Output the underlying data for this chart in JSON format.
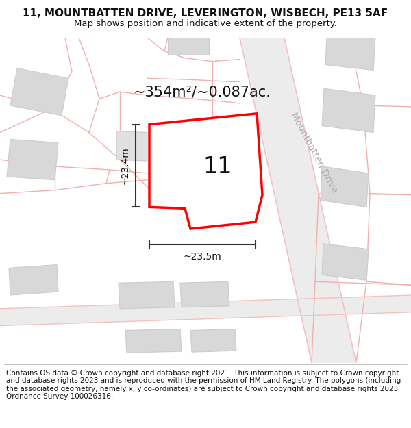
{
  "title_line1": "11, MOUNTBATTEN DRIVE, LEVERINGTON, WISBECH, PE13 5AF",
  "title_line2": "Map shows position and indicative extent of the property.",
  "footer_text": "Contains OS data © Crown copyright and database right 2021. This information is subject to Crown copyright and database rights 2023 and is reproduced with the permission of HM Land Registry. The polygons (including the associated geometry, namely x, y co-ordinates) are subject to Crown copyright and database rights 2023 Ordnance Survey 100026316.",
  "area_label": "~354m²/~0.087ac.",
  "number_label": "11",
  "dim_vertical": "~23.4m",
  "dim_horizontal": "~23.5m",
  "road_label": "Mountbatten Drive",
  "bg_color": "#ffffff",
  "map_bg": "#f8f8f8",
  "plot_outline_color": "#ff0000",
  "building_fill": "#d8d8d8",
  "building_edge": "#cccccc",
  "road_line_color": "#f5c0c0",
  "road_fill_color": "#f0f0f0",
  "road_edge_color": "#e0b0b0",
  "dim_line_color": "#333333",
  "title_fontsize": 11,
  "subtitle_fontsize": 9.5,
  "area_fontsize": 15,
  "number_fontsize": 24,
  "road_label_fontsize": 10,
  "dim_fontsize": 10,
  "footer_fontsize": 7.5
}
